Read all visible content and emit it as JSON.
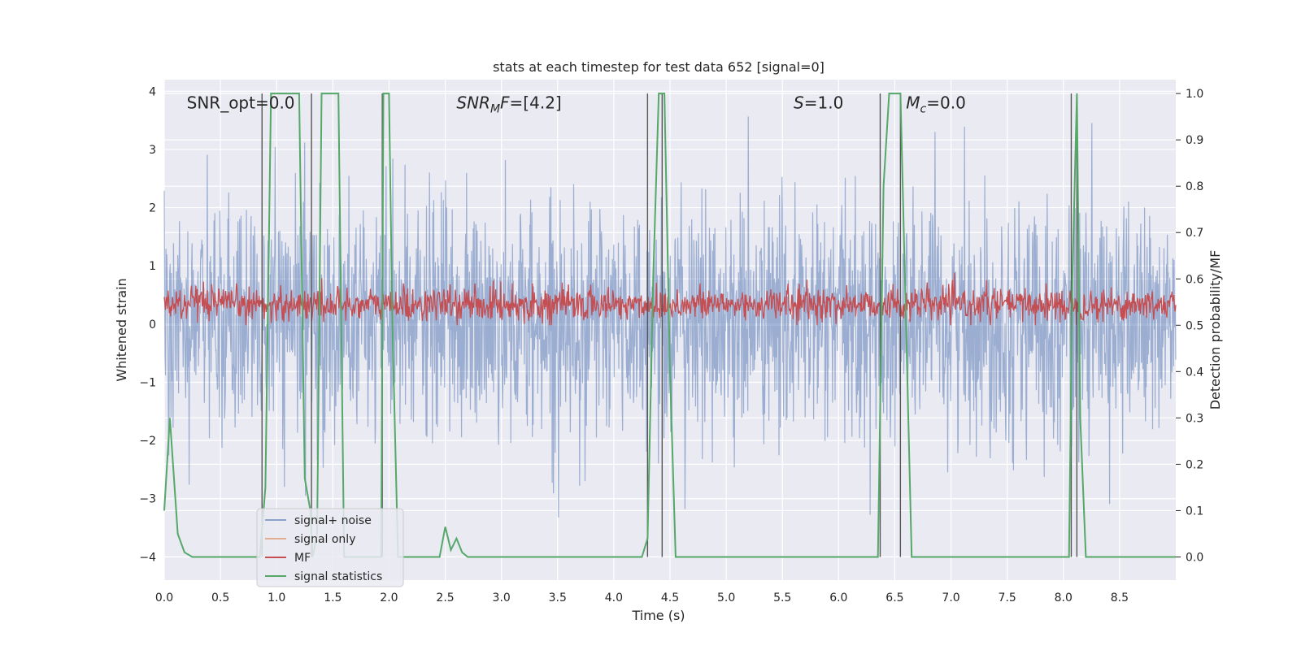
{
  "chart_data": {
    "type": "line",
    "title": "stats at each timestep for test data 652 [signal=0]",
    "xlabel": "Time (s)",
    "ylabel": "Whitened strain",
    "y2label": "Detection probability/MF",
    "xlim": [
      0.0,
      9.0
    ],
    "ylim": [
      -4.4,
      4.2
    ],
    "y2lim": [
      -0.05,
      1.03
    ],
    "x_ticks": [
      0.0,
      0.5,
      1.0,
      1.5,
      2.0,
      2.5,
      3.0,
      3.5,
      4.0,
      4.5,
      5.0,
      5.5,
      6.0,
      6.5,
      7.0,
      7.5,
      8.0,
      8.5
    ],
    "x_tick_labels": [
      "0.0",
      "0.5",
      "1.0",
      "1.5",
      "2.0",
      "2.5",
      "3.0",
      "3.5",
      "4.0",
      "4.5",
      "5.0",
      "5.5",
      "6.0",
      "6.5",
      "7.0",
      "7.5",
      "8.0",
      "8.5"
    ],
    "y_ticks": [
      -4,
      -3,
      -2,
      -1,
      0,
      1,
      2,
      3,
      4
    ],
    "y_tick_labels": [
      "−4",
      "−3",
      "−2",
      "−1",
      "0",
      "1",
      "2",
      "3",
      "4"
    ],
    "y2_ticks": [
      0.0,
      0.1,
      0.2,
      0.3,
      0.4,
      0.5,
      0.6,
      0.7,
      0.8,
      0.9,
      1.0
    ],
    "y2_tick_labels": [
      "0.0",
      "0.1",
      "0.2",
      "0.3",
      "0.4",
      "0.5",
      "0.6",
      "0.7",
      "0.8",
      "0.9",
      "1.0"
    ],
    "grid": true,
    "background": "#eaeaf2",
    "annotations": [
      {
        "text": "SNR_opt=0.0",
        "x": 0.2,
        "y": 3.8
      },
      {
        "text": "SNR_MF=[4.2]",
        "x": 2.6,
        "y": 3.8
      },
      {
        "text": "S=1.0",
        "x": 5.6,
        "y": 3.8
      },
      {
        "text": "M_c=0.0",
        "x": 6.6,
        "y": 3.8
      }
    ],
    "series": [
      {
        "name": "signal+ noise",
        "color": "#4c72b0",
        "description": "whitened noise, amplitude roughly between -3.5 and 3.7 across the whole 0-9 s window",
        "envelope": {
          "typical_min": -1.6,
          "typical_max": 1.9,
          "extreme_min": -3.5,
          "extreme_max": 3.7
        }
      },
      {
        "name": "signal only",
        "color": "#dd8452",
        "values": []
      },
      {
        "name": "MF",
        "color": "#c44e52",
        "axis": "y2",
        "description": "matched-filter output fluctuating around 0.53",
        "envelope": {
          "min": 0.5,
          "max": 0.59,
          "extreme_max": 0.63
        }
      },
      {
        "name": "signal statistics",
        "color": "#55a868",
        "axis": "y2",
        "x": [
          0.0,
          0.05,
          0.12,
          0.18,
          0.25,
          0.3,
          0.85,
          0.9,
          0.95,
          1.2,
          1.25,
          1.3,
          1.32,
          1.36,
          1.4,
          1.55,
          1.6,
          1.63,
          1.68,
          1.93,
          1.95,
          2.0,
          2.03,
          2.08,
          2.12,
          2.45,
          2.5,
          2.55,
          2.6,
          2.65,
          2.7,
          2.75,
          4.25,
          4.3,
          4.35,
          4.4,
          4.45,
          4.5,
          4.55,
          6.35,
          6.4,
          6.45,
          6.55,
          6.6,
          6.65,
          6.7,
          6.75,
          8.05,
          8.08,
          8.12,
          8.15,
          8.2,
          8.3,
          9.0
        ],
        "y": [
          0.1,
          0.3,
          0.05,
          0.01,
          0.0,
          0.0,
          0.0,
          0.15,
          1.0,
          1.0,
          0.17,
          0.1,
          0.0,
          0.05,
          1.0,
          1.0,
          0.0,
          0.0,
          0.0,
          0.0,
          1.0,
          1.0,
          0.5,
          0.0,
          0.0,
          0.0,
          0.065,
          0.015,
          0.04,
          0.01,
          0.0,
          0.0,
          0.0,
          0.04,
          0.6,
          1.0,
          1.0,
          0.4,
          0.0,
          0.0,
          0.8,
          1.0,
          1.0,
          0.5,
          0.0,
          0.0,
          0.0,
          0.0,
          0.6,
          1.0,
          0.3,
          0.0,
          0.0,
          0.0
        ]
      }
    ],
    "vlines": [
      0.87,
      1.31,
      1.94,
      4.3,
      4.43,
      6.37,
      6.55,
      8.07,
      8.12
    ],
    "vline_color": "#555555",
    "legend": {
      "placement": "lower-left",
      "entries": [
        {
          "label": "signal+ noise",
          "color": "#4c72b0"
        },
        {
          "label": "signal only",
          "color": "#dd8452"
        },
        {
          "label": "MF",
          "color": "#c44e52"
        },
        {
          "label": "signal statistics",
          "color": "#55a868"
        }
      ]
    }
  }
}
